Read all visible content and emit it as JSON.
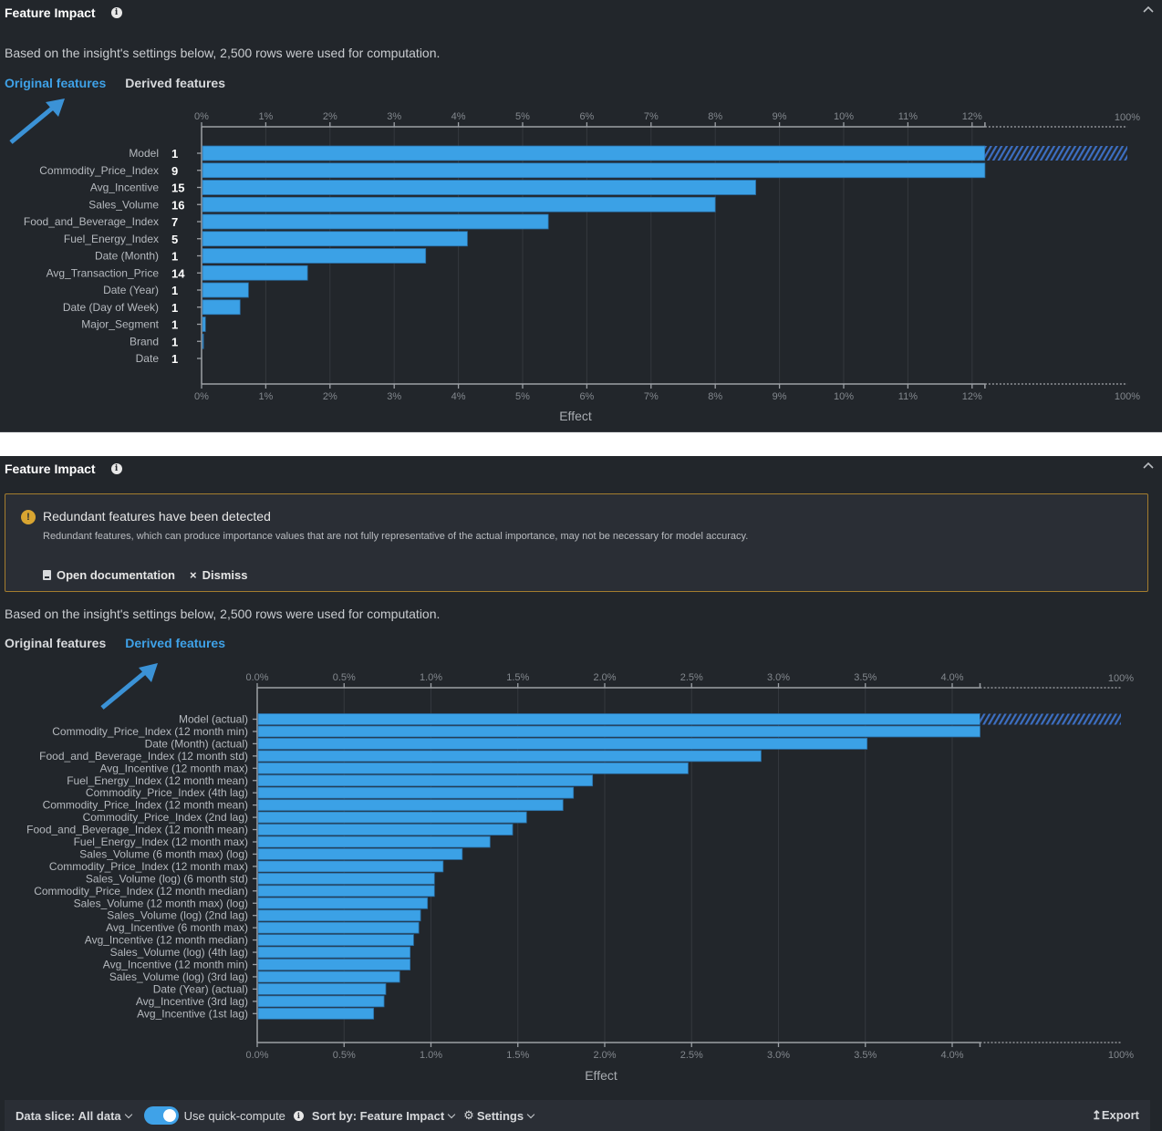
{
  "panels": [
    {
      "title": "Feature Impact",
      "info_icon": "info-icon",
      "collapse_icon": "chevron-up-icon",
      "subtitle": "Based on the insight's settings below, 2,500 rows were used for computation.",
      "tabs": [
        {
          "label": "Original features",
          "active": true
        },
        {
          "label": "Derived features",
          "active": false
        }
      ],
      "annotation_icon": "arrow-pointer-icon"
    },
    {
      "title": "Feature Impact",
      "info_icon": "info-icon",
      "collapse_icon": "chevron-up-icon",
      "alert": {
        "icon": "warning-icon",
        "title": "Redundant features have been detected",
        "body": "Redundant features, which can produce importance values that are not fully representative of the actual importance, may not be necessary for model accuracy.",
        "open_docs_label": "Open documentation",
        "dismiss_label": "Dismiss",
        "dismiss_glyph": "×"
      },
      "subtitle": "Based on the insight's settings below, 2,500 rows were used for computation.",
      "tabs": [
        {
          "label": "Original features",
          "active": false
        },
        {
          "label": "Derived features",
          "active": true
        }
      ],
      "annotation_icon": "arrow-pointer-icon",
      "footer": {
        "data_slice_label": "Data slice:",
        "data_slice_value": "All data",
        "quick_compute_label": "Use quick-compute",
        "quick_compute_on": true,
        "sort_label": "Sort by:",
        "sort_value": "Feature Impact",
        "settings_label": "Settings",
        "export_label": "Export",
        "export_glyph": "↥"
      }
    }
  ],
  "colors": {
    "bar": "#3ba1e6",
    "bar_hatch": "#3d6fc2",
    "active_tab": "#3fa2e8",
    "alert_border": "#a47d2e",
    "warning": "#d9a531"
  },
  "chart_data": [
    {
      "type": "bar",
      "orientation": "horizontal",
      "title": "",
      "xlabel": "Effect",
      "ylabel": "",
      "xlim": [
        0,
        12.2
      ],
      "x_ticks": [
        0,
        1,
        2,
        3,
        4,
        5,
        6,
        7,
        8,
        9,
        10,
        11,
        12
      ],
      "tick_suffix": "%",
      "tick_decimals": 0,
      "x_break_label": "100%",
      "top_bar_extends_to": "100%",
      "grid": true,
      "categories": [
        "Model",
        "Commodity_Price_Index",
        "Avg_Incentive",
        "Sales_Volume",
        "Food_and_Beverage_Index",
        "Fuel_Energy_Index",
        "Date (Month)",
        "Avg_Transaction_Price",
        "Date (Year)",
        "Date (Day of Week)",
        "Major_Segment",
        "Brand",
        "Date"
      ],
      "derived_counts": [
        1,
        9,
        15,
        16,
        7,
        5,
        1,
        14,
        1,
        1,
        1,
        1,
        1
      ],
      "values": [
        100,
        12.2,
        8.63,
        8.0,
        5.4,
        4.14,
        3.49,
        1.65,
        0.73,
        0.6,
        0.06,
        0.03,
        0.0
      ]
    },
    {
      "type": "bar",
      "orientation": "horizontal",
      "title": "",
      "xlabel": "Effect",
      "ylabel": "",
      "xlim": [
        0,
        4.16
      ],
      "x_ticks": [
        0,
        0.5,
        1.0,
        1.5,
        2.0,
        2.5,
        3.0,
        3.5,
        4.0
      ],
      "tick_suffix": "%",
      "tick_decimals": 1,
      "x_break_label": "100%",
      "top_bar_extends_to": "100%",
      "grid": true,
      "categories": [
        "Model (actual)",
        "Commodity_Price_Index (12 month min)",
        "Date (Month) (actual)",
        "Food_and_Beverage_Index (12 month std)",
        "Avg_Incentive (12 month max)",
        "Fuel_Energy_Index (12 month mean)",
        "Commodity_Price_Index (4th lag)",
        "Commodity_Price_Index (12 month mean)",
        "Commodity_Price_Index (2nd lag)",
        "Food_and_Beverage_Index (12 month mean)",
        "Fuel_Energy_Index (12 month max)",
        "Sales_Volume (6 month max) (log)",
        "Commodity_Price_Index (12 month max)",
        "Sales_Volume (log) (6 month std)",
        "Commodity_Price_Index (12 month median)",
        "Sales_Volume (12 month max) (log)",
        "Sales_Volume (log) (2nd lag)",
        "Avg_Incentive (6 month max)",
        "Avg_Incentive (12 month median)",
        "Sales_Volume (log) (4th lag)",
        "Avg_Incentive (12 month min)",
        "Sales_Volume (log) (3rd lag)",
        "Date (Year) (actual)",
        "Avg_Incentive (3rd lag)",
        "Avg_Incentive (1st lag)"
      ],
      "values": [
        100,
        4.16,
        3.51,
        2.9,
        2.48,
        1.93,
        1.82,
        1.76,
        1.55,
        1.47,
        1.34,
        1.18,
        1.07,
        1.02,
        1.02,
        0.98,
        0.94,
        0.93,
        0.9,
        0.88,
        0.88,
        0.82,
        0.74,
        0.73,
        0.67
      ]
    }
  ]
}
